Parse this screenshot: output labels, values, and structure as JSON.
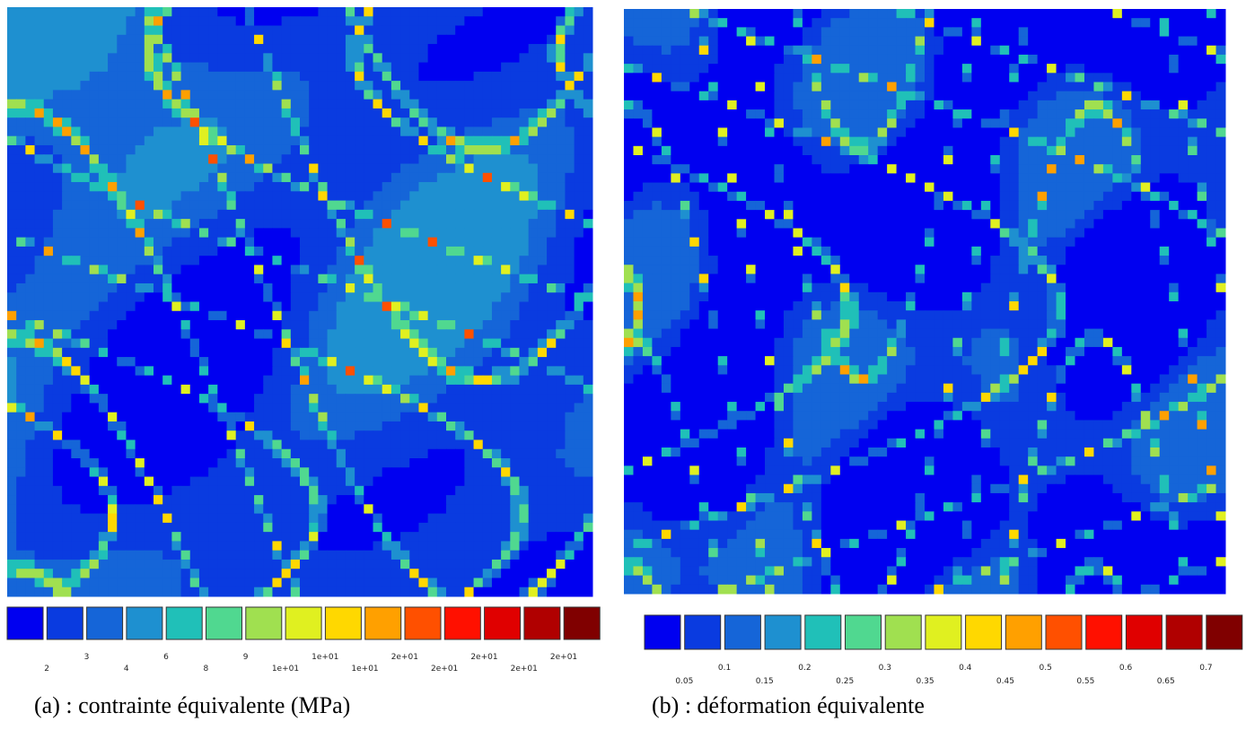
{
  "panels": [
    {
      "caption": "(a) : contrainte équivalente (MPa)",
      "legend": {
        "colors": [
          "#0000f0",
          "#0a3be0",
          "#1565d8",
          "#1e90d0",
          "#20c0b8",
          "#50d890",
          "#a0e050",
          "#e0f020",
          "#ffd800",
          "#ffa000",
          "#ff5000",
          "#ff1000",
          "#e00000",
          "#b00000",
          "#800000"
        ],
        "labels": [
          "2",
          "3",
          "4",
          "6",
          "8",
          "9",
          "1e+01",
          "1e+01",
          "1e+01",
          "2e+01",
          "2e+01",
          "2e+01",
          "2e+01",
          "2e+01"
        ]
      }
    },
    {
      "caption": "(b) : déformation équivalente",
      "legend": {
        "colors": [
          "#0000f0",
          "#0a3be0",
          "#1565d8",
          "#1e90d0",
          "#20c0b8",
          "#50d890",
          "#a0e050",
          "#e0f020",
          "#ffd800",
          "#ffa000",
          "#ff5000",
          "#ff1000",
          "#e00000",
          "#b00000",
          "#800000"
        ],
        "labels": [
          "0.05",
          "0.1",
          "0.15",
          "0.2",
          "0.25",
          "0.3",
          "0.35",
          "0.4",
          "0.45",
          "0.5",
          "0.55",
          "0.6",
          "0.65",
          "0.7"
        ]
      }
    }
  ]
}
